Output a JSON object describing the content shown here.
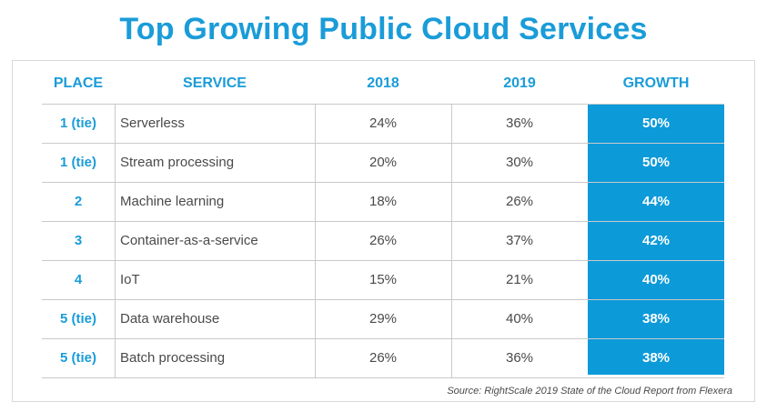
{
  "title": "Top Growing Public Cloud Services",
  "table": {
    "headers": {
      "place": "PLACE",
      "service": "SERVICE",
      "y2018": "2018",
      "y2019": "2019",
      "growth": "GROWTH"
    },
    "rows": [
      {
        "place": "1 (tie)",
        "service": "Serverless",
        "y2018": "24%",
        "y2019": "36%",
        "growth": "50%"
      },
      {
        "place": "1 (tie)",
        "service": "Stream processing",
        "y2018": "20%",
        "y2019": "30%",
        "growth": "50%"
      },
      {
        "place": "2",
        "service": "Machine learning",
        "y2018": "18%",
        "y2019": "26%",
        "growth": "44%"
      },
      {
        "place": "3",
        "service": "Container-as-a-service",
        "y2018": "26%",
        "y2019": "37%",
        "growth": "42%"
      },
      {
        "place": "4",
        "service": "IoT",
        "y2018": "15%",
        "y2019": "21%",
        "growth": "40%"
      },
      {
        "place": "5 (tie)",
        "service": "Data warehouse",
        "y2018": "29%",
        "y2019": "40%",
        "growth": "38%"
      },
      {
        "place": "5 (tie)",
        "service": "Batch processing",
        "y2018": "26%",
        "y2019": "36%",
        "growth": "38%"
      }
    ]
  },
  "source": "Source: RightScale 2019 State of the Cloud Report from Flexera",
  "colors": {
    "accent": "#1a9cd8",
    "growth_fill": "#0d9ad9",
    "text": "#4a4a4a",
    "grid": "#c9c9c9"
  }
}
